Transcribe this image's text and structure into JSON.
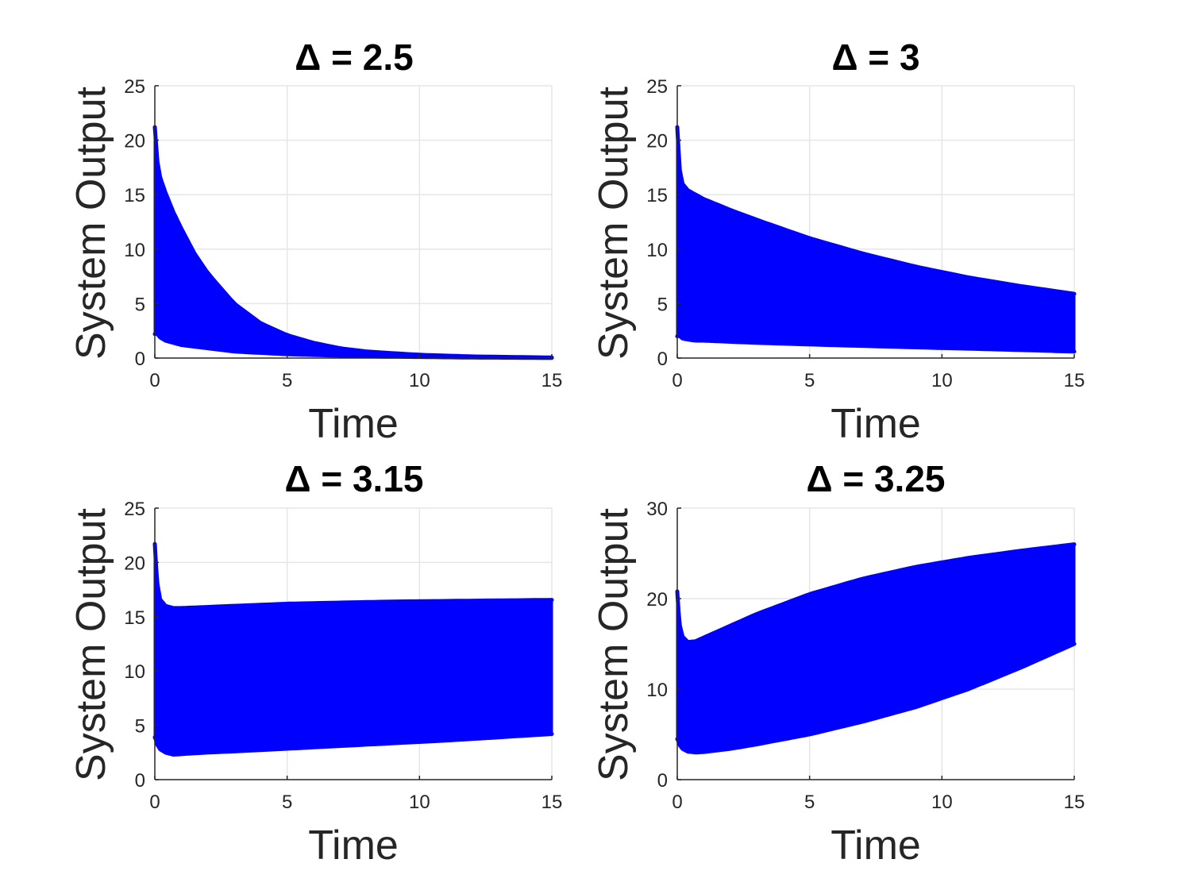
{
  "chart_data": [
    {
      "type": "line",
      "title": "Δ = 2.5",
      "xlabel": "Time",
      "ylabel": "System Output",
      "xlim": [
        0,
        15
      ],
      "ylim": [
        0,
        25
      ],
      "xticks": [
        0,
        5,
        10,
        15
      ],
      "yticks": [
        0,
        5,
        10,
        15,
        20,
        25
      ],
      "grid": true,
      "color": "#0000ff",
      "series": [
        {
          "name": "upper envelope",
          "x": [
            0,
            0.05,
            0.1,
            0.2,
            0.4,
            0.7,
            1,
            1.5,
            2,
            3,
            4,
            5,
            6,
            7,
            8,
            10,
            12,
            15
          ],
          "values": [
            21.2,
            19.5,
            18.0,
            16.6,
            15.2,
            13.4,
            11.9,
            9.6,
            7.8,
            5.0,
            3.2,
            2.1,
            1.4,
            0.9,
            0.6,
            0.3,
            0.15,
            0.05
          ]
        },
        {
          "name": "lower envelope",
          "x": [
            0,
            0.05,
            0.1,
            0.2,
            0.4,
            0.7,
            1,
            2,
            3,
            5,
            8,
            12,
            15
          ],
          "values": [
            2.2,
            2.4,
            2.2,
            1.9,
            1.6,
            1.4,
            1.2,
            0.9,
            0.6,
            0.35,
            0.15,
            0.05,
            0.02
          ]
        }
      ]
    },
    {
      "type": "line",
      "title": "Δ = 3",
      "xlabel": "Time",
      "ylabel": "System Output",
      "xlim": [
        0,
        15
      ],
      "ylim": [
        0,
        25
      ],
      "xticks": [
        0,
        5,
        10,
        15
      ],
      "yticks": [
        0,
        5,
        10,
        15,
        20,
        25
      ],
      "grid": true,
      "color": "#0000ff",
      "series": [
        {
          "name": "upper envelope",
          "x": [
            0,
            0.05,
            0.1,
            0.2,
            0.4,
            0.7,
            1,
            2,
            3,
            5,
            7,
            9,
            11,
            13,
            15
          ],
          "values": [
            21.2,
            19.0,
            17.2,
            16.0,
            15.4,
            15.0,
            14.6,
            13.6,
            12.7,
            11.0,
            9.6,
            8.4,
            7.4,
            6.6,
            5.9
          ]
        },
        {
          "name": "lower envelope",
          "x": [
            0,
            0.05,
            0.1,
            0.2,
            0.4,
            0.7,
            1,
            2,
            3,
            5,
            8,
            12,
            15
          ],
          "values": [
            2.0,
            2.2,
            2.0,
            1.8,
            1.7,
            1.6,
            1.6,
            1.5,
            1.4,
            1.25,
            1.05,
            0.8,
            0.6
          ]
        }
      ]
    },
    {
      "type": "line",
      "title": "Δ = 3.15",
      "xlabel": "Time",
      "ylabel": "System Output",
      "xlim": [
        0,
        15
      ],
      "ylim": [
        0,
        25
      ],
      "xticks": [
        0,
        5,
        10,
        15
      ],
      "yticks": [
        0,
        5,
        10,
        15,
        20,
        25
      ],
      "grid": true,
      "color": "#0000ff",
      "series": [
        {
          "name": "upper envelope",
          "x": [
            0,
            0.05,
            0.1,
            0.2,
            0.4,
            0.7,
            1,
            2,
            3,
            5,
            7,
            9,
            11,
            13,
            15
          ],
          "values": [
            21.7,
            19.5,
            18.0,
            16.6,
            16.0,
            15.8,
            15.8,
            15.9,
            16.0,
            16.2,
            16.3,
            16.4,
            16.45,
            16.5,
            16.55
          ]
        },
        {
          "name": "lower envelope",
          "x": [
            0,
            0.05,
            0.1,
            0.2,
            0.4,
            0.7,
            1,
            2,
            3,
            5,
            7,
            9,
            11,
            13,
            15
          ],
          "values": [
            3.9,
            3.6,
            3.2,
            2.8,
            2.5,
            2.3,
            2.35,
            2.5,
            2.6,
            2.85,
            3.1,
            3.35,
            3.6,
            3.9,
            4.2
          ]
        }
      ]
    },
    {
      "type": "line",
      "title": "Δ = 3.25",
      "xlabel": "Time",
      "ylabel": "System Output",
      "xlim": [
        0,
        15
      ],
      "ylim": [
        0,
        30
      ],
      "xticks": [
        0,
        5,
        10,
        15
      ],
      "yticks": [
        0,
        10,
        20,
        30
      ],
      "grid": true,
      "color": "#0000ff",
      "series": [
        {
          "name": "upper envelope",
          "x": [
            0,
            0.05,
            0.1,
            0.2,
            0.4,
            0.7,
            1,
            2,
            3,
            5,
            7,
            9,
            11,
            13,
            15
          ],
          "values": [
            20.8,
            18.5,
            17.0,
            15.8,
            15.2,
            15.3,
            15.7,
            17.0,
            18.3,
            20.5,
            22.2,
            23.5,
            24.5,
            25.3,
            26.0
          ]
        },
        {
          "name": "lower envelope",
          "x": [
            0,
            0.05,
            0.1,
            0.2,
            0.4,
            0.7,
            1,
            2,
            3,
            5,
            7,
            9,
            11,
            13,
            15
          ],
          "values": [
            4.5,
            4.2,
            3.8,
            3.4,
            3.1,
            3.0,
            3.05,
            3.4,
            3.9,
            5.0,
            6.4,
            8.0,
            10.0,
            12.4,
            15.0
          ]
        }
      ]
    }
  ]
}
